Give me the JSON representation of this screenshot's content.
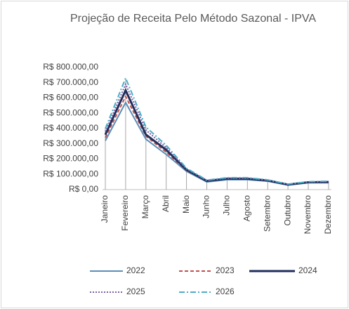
{
  "chart_data": {
    "type": "line",
    "title": "Projeção de Receita Pelo Método Sazonal - IPVA",
    "categories": [
      "Janeiro",
      "Fevereiro",
      "Março",
      "Abril",
      "Maio",
      "Junho",
      "Julho",
      "Agosto",
      "Setembro",
      "Outubro",
      "Novembro",
      "Dezembro"
    ],
    "series": [
      {
        "name": "2022",
        "color": "#5b8db8",
        "dash": "solid",
        "values": [
          320000,
          570000,
          330000,
          230000,
          120000,
          50000,
          65000,
          65000,
          55000,
          30000,
          45000,
          45000
        ]
      },
      {
        "name": "2023",
        "color": "#c0504d",
        "dash": "dashed",
        "values": [
          340000,
          610000,
          350000,
          245000,
          125000,
          55000,
          70000,
          70000,
          58000,
          32000,
          47000,
          48000
        ]
      },
      {
        "name": "2024",
        "color": "#1f2f5c",
        "dash": "solid-thick",
        "values": [
          360000,
          650000,
          360000,
          260000,
          130000,
          57000,
          72000,
          72000,
          60000,
          33000,
          48000,
          50000
        ]
      },
      {
        "name": "2025",
        "color": "#7a5fa6",
        "dash": "dotted",
        "values": [
          380000,
          690000,
          390000,
          275000,
          135000,
          60000,
          75000,
          75000,
          62000,
          35000,
          50000,
          52000
        ]
      },
      {
        "name": "2026",
        "color": "#4bacc6",
        "dash": "dash-dot",
        "values": [
          400000,
          730000,
          410000,
          290000,
          140000,
          62000,
          78000,
          78000,
          64000,
          36000,
          52000,
          55000
        ]
      }
    ],
    "ylim": [
      0,
      800000
    ],
    "yticks": [
      {
        "value": 0,
        "label": "R$ 0,00"
      },
      {
        "value": 100000,
        "label": "R$ 100.000,00"
      },
      {
        "value": 200000,
        "label": "R$ 200.000,00"
      },
      {
        "value": 300000,
        "label": "R$ 300.000,00"
      },
      {
        "value": 400000,
        "label": "R$ 400.000,00"
      },
      {
        "value": 500000,
        "label": "R$ 500.000,00"
      },
      {
        "value": 600000,
        "label": "R$ 600.000,00"
      },
      {
        "value": 700000,
        "label": "R$ 700.000,00"
      },
      {
        "value": 800000,
        "label": "R$ 800.000,00"
      }
    ],
    "drop_lines": true,
    "legend": "bottom"
  }
}
